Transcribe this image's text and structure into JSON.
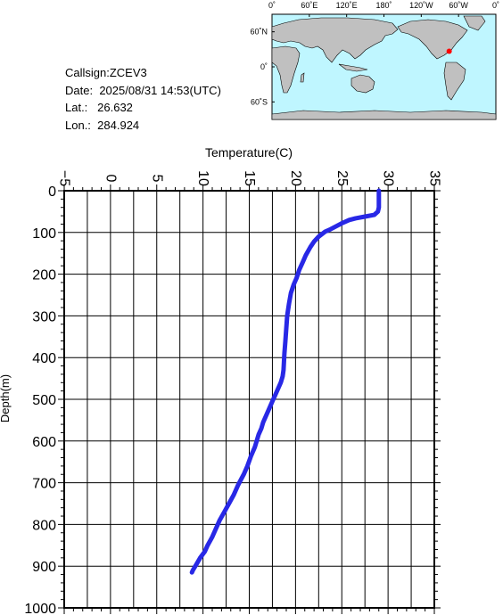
{
  "info": {
    "callsign": "Callsign:ZCEV3",
    "date_label": "Date:",
    "date_value": "2025/08/31 14:53(UTC)",
    "lat_label": "Lat.:",
    "lat_value": "26.632",
    "lon_label": "Lon.:",
    "lon_value": "284.924"
  },
  "map": {
    "lon_ticks": [
      "0˚",
      "60˚E",
      "120˚E",
      "180˚",
      "120˚W",
      "60˚W",
      "0˚"
    ],
    "lat_ticks": [
      "60˚N",
      "0˚",
      "60˚S"
    ],
    "ocean_color": "#bff6ff",
    "land_color": "#c0c0c0",
    "marker_color": "#ff0000",
    "marker": {
      "lon": 284.924,
      "lat": 26.632
    }
  },
  "chart_data": {
    "type": "line",
    "xlabel": "Temperature(C)",
    "ylabel": "Depth(m)",
    "xlim": [
      -5,
      35
    ],
    "ylim": [
      0,
      1000
    ],
    "y_inverted": true,
    "x_ticks": [
      -5,
      0,
      5,
      10,
      15,
      20,
      25,
      30,
      35
    ],
    "y_ticks": [
      0,
      100,
      200,
      300,
      400,
      500,
      600,
      700,
      800,
      900,
      1000
    ],
    "grid": true,
    "line_color": "#2828e6",
    "series": [
      {
        "x": [
          29.0,
          29.0,
          29.0,
          29.0,
          29.0,
          28.9,
          28.5,
          27.5,
          26.5,
          25.8,
          25.0,
          24.4,
          23.8,
          23.2,
          22.5,
          22.0,
          21.6,
          21.1,
          20.8,
          20.4,
          20.1,
          19.8,
          19.5,
          19.3,
          19.1,
          19.0,
          18.9,
          18.8,
          18.75,
          18.7,
          18.6,
          18.4,
          18.1,
          17.8,
          17.5,
          17.2,
          16.8,
          16.5,
          16.3,
          16.0,
          15.8,
          15.6,
          15.2,
          14.8,
          14.4,
          13.8,
          13.3,
          12.8,
          12.3,
          11.8,
          11.4,
          11.0,
          10.5,
          10.2,
          9.7,
          9.3,
          8.9,
          8.8
        ],
        "y": [
          0,
          10,
          20,
          30,
          40,
          50,
          58,
          62,
          66,
          70,
          78,
          85,
          92,
          98,
          110,
          122,
          135,
          155,
          170,
          190,
          210,
          225,
          245,
          270,
          300,
          330,
          360,
          390,
          410,
          430,
          445,
          460,
          475,
          490,
          505,
          520,
          540,
          555,
          570,
          585,
          600,
          615,
          635,
          660,
          680,
          705,
          730,
          750,
          770,
          790,
          810,
          830,
          850,
          865,
          880,
          895,
          910,
          915
        ]
      }
    ]
  }
}
